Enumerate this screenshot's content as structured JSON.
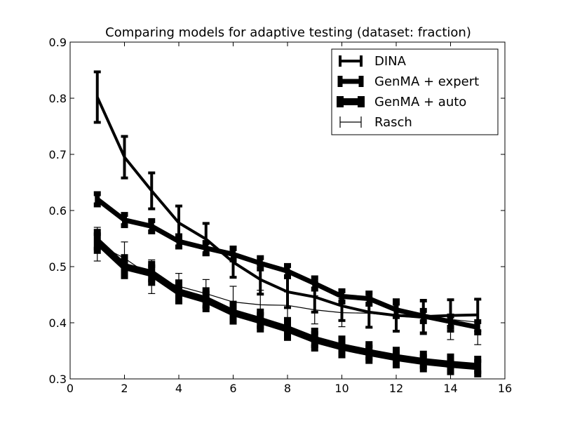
{
  "chart_data": {
    "type": "line",
    "title": "Comparing models for adaptive testing (dataset: fraction)",
    "xlabel": "",
    "ylabel": "",
    "xlim": [
      0,
      16
    ],
    "ylim": [
      0.3,
      0.9
    ],
    "xticks": [
      "0",
      "2",
      "4",
      "6",
      "8",
      "10",
      "12",
      "14",
      "16"
    ],
    "yticks": [
      "0.3",
      "0.4",
      "0.5",
      "0.6",
      "0.7",
      "0.8",
      "0.9"
    ],
    "grid": false,
    "legend_position": "top-right",
    "x": [
      1,
      2,
      3,
      4,
      5,
      6,
      7,
      8,
      9,
      10,
      11,
      12,
      13,
      14,
      15
    ],
    "series": [
      {
        "name": "DINA",
        "line_weight": "medium",
        "values": [
          0.802,
          0.695,
          0.635,
          0.578,
          0.549,
          0.508,
          0.477,
          0.455,
          0.446,
          0.43,
          0.419,
          0.413,
          0.411,
          0.413,
          0.414
        ],
        "errors": [
          0.045,
          0.037,
          0.032,
          0.03,
          0.028,
          0.027,
          0.026,
          0.028,
          0.027,
          0.026,
          0.027,
          0.028,
          0.029,
          0.028,
          0.028
        ]
      },
      {
        "name": "GenMA + expert",
        "line_weight": "heavy",
        "values": [
          0.62,
          0.583,
          0.572,
          0.545,
          0.533,
          0.522,
          0.506,
          0.492,
          0.47,
          0.447,
          0.443,
          0.423,
          0.412,
          0.402,
          0.392
        ],
        "errors": [
          0.01,
          0.01,
          0.01,
          0.01,
          0.01,
          0.01,
          0.01,
          0.01,
          0.01,
          0.01,
          0.01,
          0.012,
          0.01,
          0.01,
          0.01
        ]
      },
      {
        "name": "GenMA + auto",
        "line_weight": "heaviest",
        "values": [
          0.545,
          0.5,
          0.488,
          0.455,
          0.441,
          0.418,
          0.404,
          0.389,
          0.37,
          0.357,
          0.347,
          0.338,
          0.331,
          0.326,
          0.322
        ],
        "errors": [
          0.016,
          0.016,
          0.016,
          0.016,
          0.016,
          0.015,
          0.015,
          0.015,
          0.015,
          0.014,
          0.014,
          0.013,
          0.013,
          0.013,
          0.013
        ]
      },
      {
        "name": "Rasch",
        "line_weight": "thin",
        "values": [
          0.54,
          0.515,
          0.482,
          0.465,
          0.452,
          0.437,
          0.432,
          0.431,
          0.423,
          0.418,
          0.417,
          0.412,
          0.408,
          0.406,
          0.401
        ],
        "errors": [
          0.03,
          0.029,
          0.03,
          0.023,
          0.025,
          0.028,
          0.026,
          0.024,
          0.025,
          0.025,
          0.026,
          0.027,
          0.029,
          0.036,
          0.04
        ]
      }
    ]
  }
}
